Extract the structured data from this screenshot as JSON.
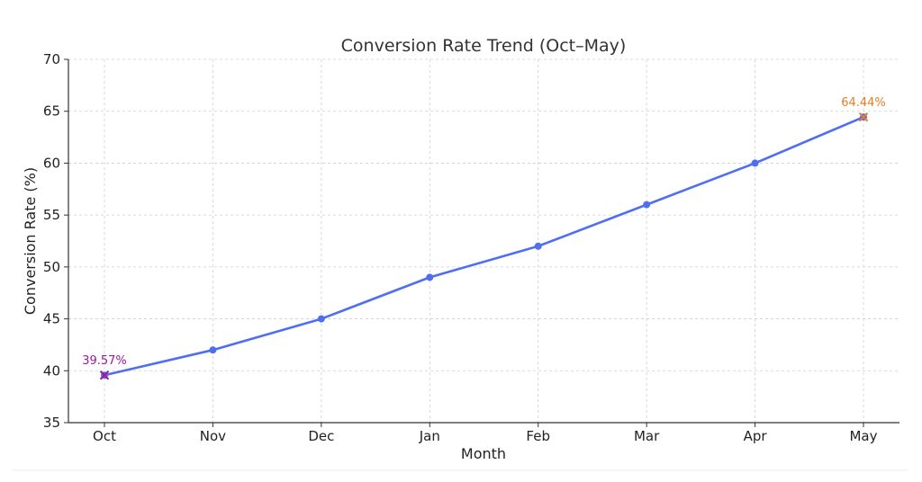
{
  "chart_data": {
    "type": "line",
    "title": "Conversion Rate Trend (Oct–May)",
    "xlabel": "Month",
    "ylabel": "Conversion Rate (%)",
    "categories": [
      "Oct",
      "Nov",
      "Dec",
      "Jan",
      "Feb",
      "Mar",
      "Apr",
      "May"
    ],
    "series": [
      {
        "name": "Conversion Rate",
        "values": [
          39.57,
          42,
          45,
          49,
          52,
          56,
          60,
          64.44
        ]
      }
    ],
    "ylim": [
      35,
      70
    ],
    "yticks": [
      "35",
      "40",
      "45",
      "50",
      "55",
      "60",
      "65",
      "70"
    ],
    "grid": true,
    "annotations": [
      {
        "category": "Oct",
        "value": 39.57,
        "text": "39.57%",
        "color": "#a0189c"
      },
      {
        "category": "May",
        "value": 64.44,
        "text": "64.44%",
        "color": "#e67e22"
      }
    ],
    "colors": {
      "line": "#4f6ef2",
      "min_marker": "#a0189c",
      "max_marker": "#e67e22"
    }
  }
}
